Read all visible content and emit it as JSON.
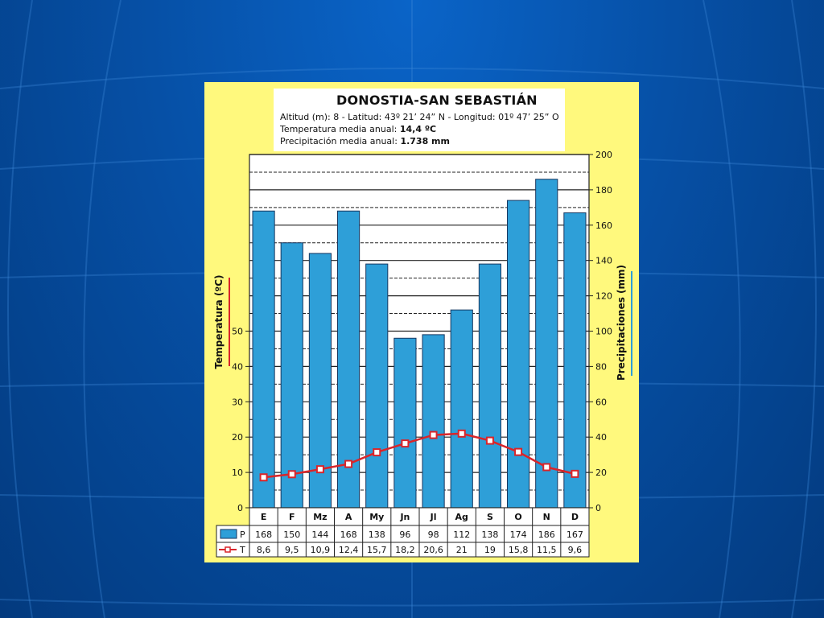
{
  "chart_data": {
    "type": "bar",
    "title": "DONOSTIA-SAN SEBASTIÁN",
    "info": {
      "line1": "Altitud (m): 8 - Latitud: 43º 21’ 24” N - Longitud: 01º 47’ 25” O",
      "line2_label": "Temperatura media anual: ",
      "line2_value": "14,4 ºC",
      "line3_label": "Precipitación media anual: ",
      "line3_value": "1.738 mm"
    },
    "categories": [
      "E",
      "F",
      "Mz",
      "A",
      "My",
      "Jn",
      "Jl",
      "Ag",
      "S",
      "O",
      "N",
      "D"
    ],
    "series": [
      {
        "name": "P",
        "type": "bar",
        "axis": "right",
        "color": "#2e9fd8",
        "values": [
          168,
          150,
          144,
          168,
          138,
          96,
          98,
          112,
          138,
          174,
          186,
          167
        ],
        "labels": [
          "168",
          "150",
          "144",
          "168",
          "138",
          "96",
          "98",
          "112",
          "138",
          "174",
          "186",
          "167"
        ]
      },
      {
        "name": "T",
        "type": "line",
        "axis": "left",
        "color": "#d9252a",
        "values": [
          8.6,
          9.5,
          10.9,
          12.4,
          15.7,
          18.2,
          20.6,
          21,
          19,
          15.8,
          11.5,
          9.6
        ],
        "labels": [
          "8,6",
          "9,5",
          "10,9",
          "12,4",
          "15,7",
          "18,2",
          "20,6",
          "21",
          "19",
          "15,8",
          "11,5",
          "9,6"
        ]
      }
    ],
    "left_axis": {
      "label": "Temperatura (ºC)",
      "ticks": [
        "0",
        "10",
        "20",
        "30",
        "40",
        "50"
      ],
      "range": [
        0,
        100
      ]
    },
    "right_axis": {
      "label": "Precipitaciones (mm)",
      "ticks": [
        "0",
        "20",
        "40",
        "60",
        "80",
        "100",
        "120",
        "140",
        "160",
        "180",
        "200"
      ],
      "range": [
        0,
        200
      ]
    },
    "grid": true
  }
}
